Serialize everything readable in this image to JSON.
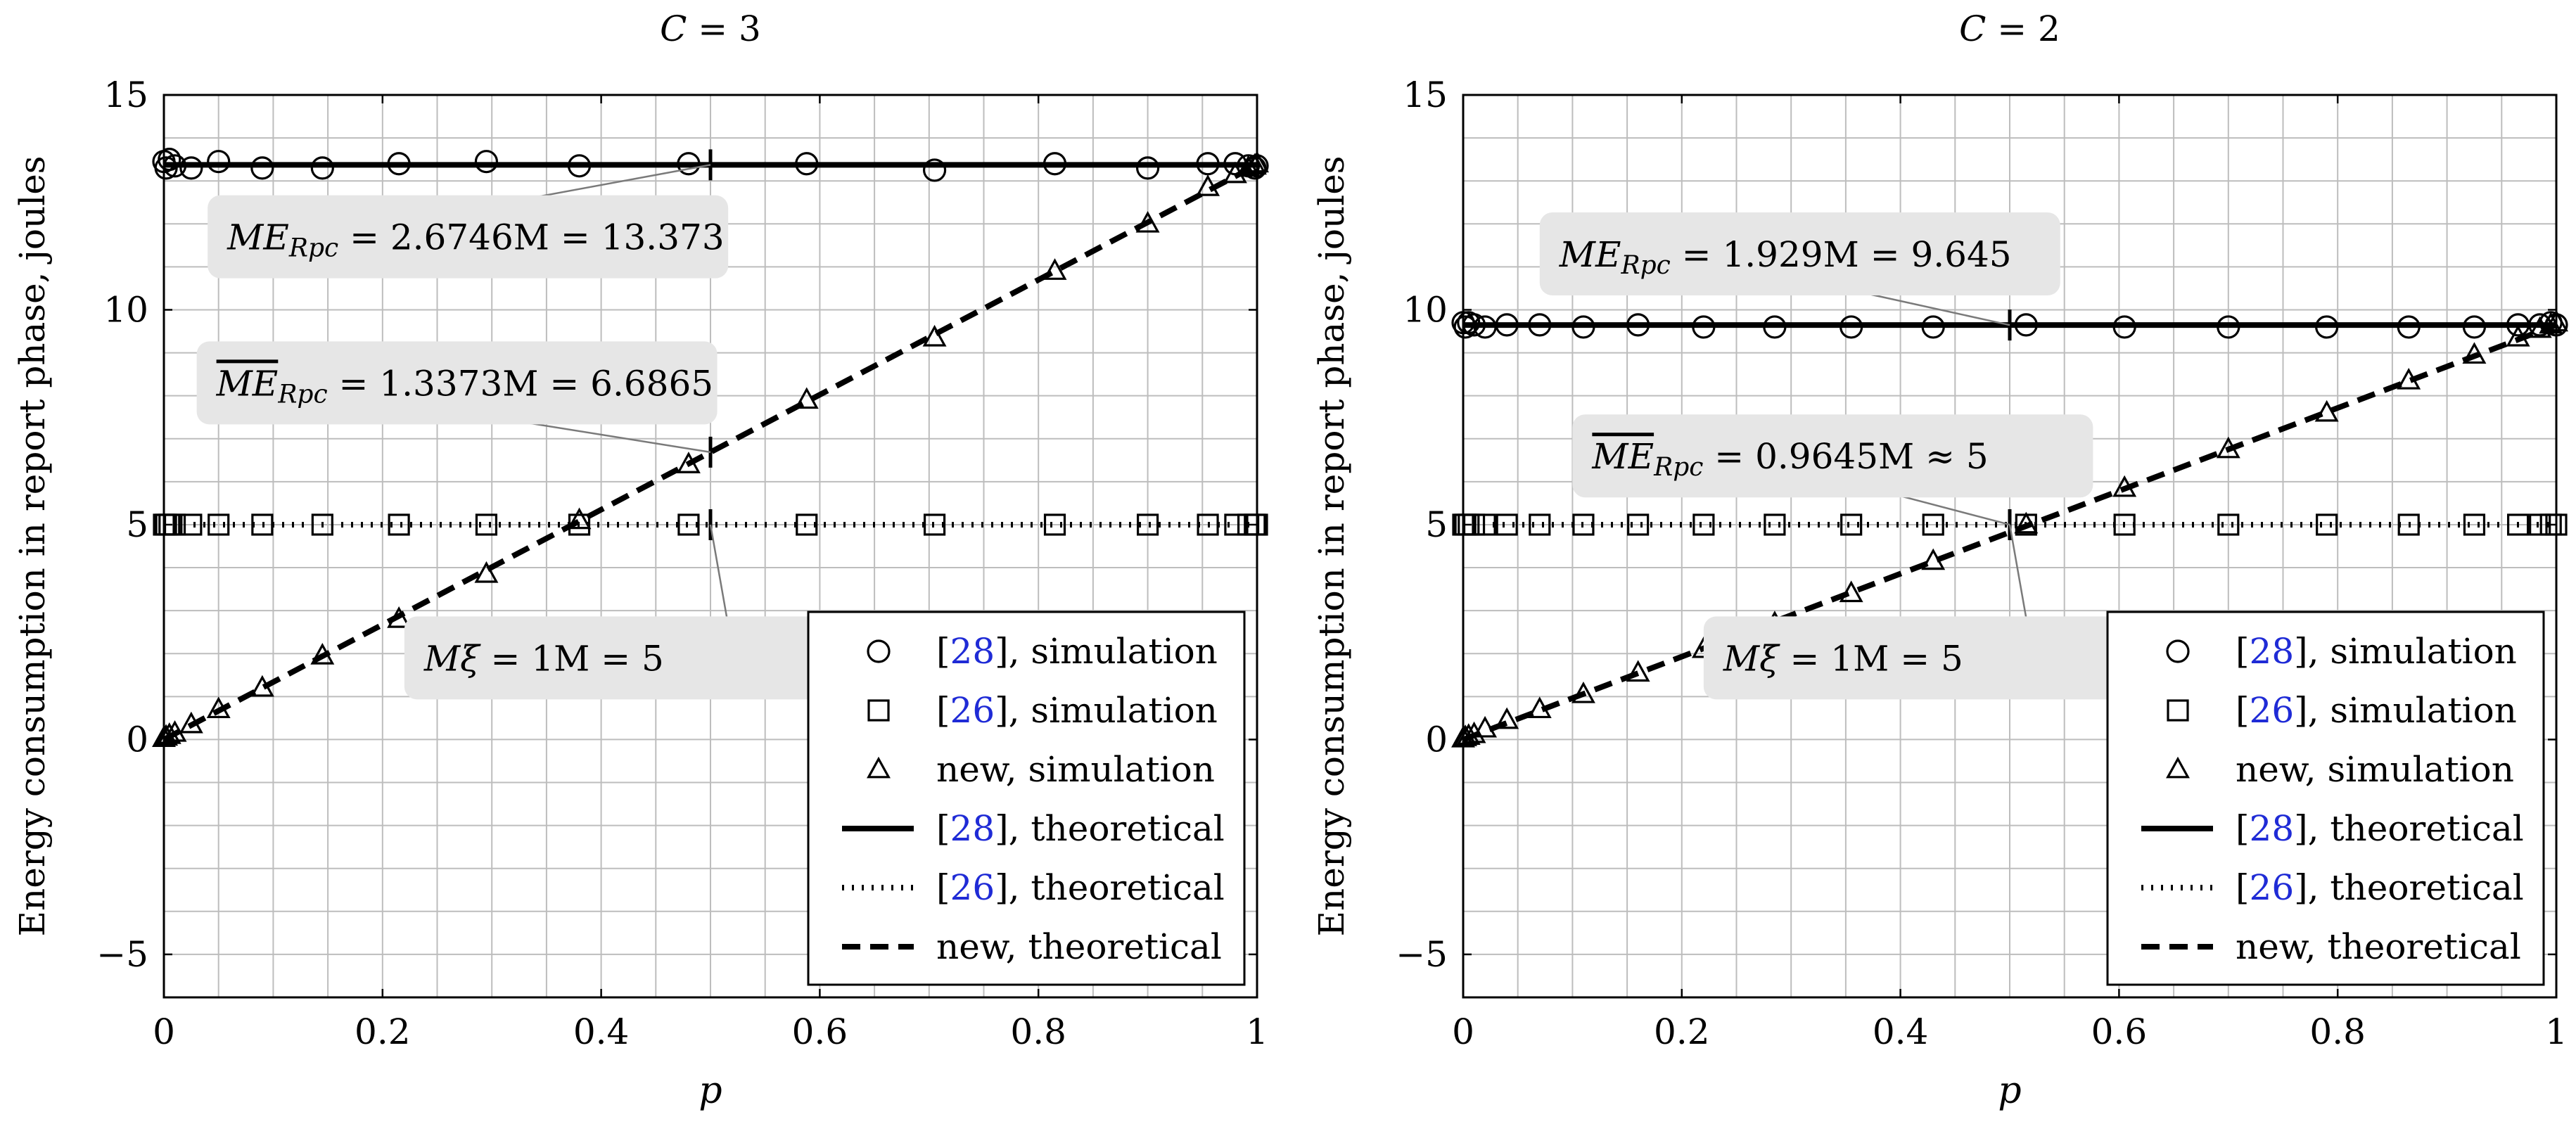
{
  "colors": {
    "axis": "#000000",
    "grid": "#bdbdbd",
    "callout_bg": "#e6e6e6",
    "cite": "#1f2bd6"
  },
  "y_axis_label": "Energy consumption in report phase, joules",
  "x_axis_label": "p",
  "chart_data": [
    {
      "type": "line",
      "title": "C = 3",
      "xlabel": "p",
      "ylabel": "Energy consumption in report phase, joules",
      "xlim": [
        0,
        1
      ],
      "ylim": [
        -6,
        15
      ],
      "xticks": [
        0,
        0.2,
        0.4,
        0.6,
        0.8,
        1
      ],
      "xtick_labels": [
        "0",
        "0.2",
        "0.4",
        "0.6",
        "0.8",
        "1"
      ],
      "yticks": [
        -5,
        0,
        5,
        10,
        15
      ],
      "ytick_labels": [
        "−5",
        "0",
        "5",
        "10",
        "15"
      ],
      "grid": true,
      "legend_position": "bottom-right",
      "legend": [
        {
          "cite": "28",
          "text": ", simulation",
          "style": "circle"
        },
        {
          "cite": "26",
          "text": ", simulation",
          "style": "square"
        },
        {
          "cite": "",
          "text": "new, simulation",
          "style": "triangle"
        },
        {
          "cite": "28",
          "text": ", theoretical",
          "style": "solid"
        },
        {
          "cite": "26",
          "text": ", theoretical",
          "style": "dotted"
        },
        {
          "cite": "",
          "text": "new, theoretical",
          "style": "dashed"
        }
      ],
      "series": [
        {
          "name": "[28], theoretical",
          "style": "solid",
          "x": [
            0,
            1
          ],
          "y": [
            13.373,
            13.373
          ]
        },
        {
          "name": "[26], theoretical",
          "style": "dotted",
          "x": [
            0,
            1
          ],
          "y": [
            5,
            5
          ]
        },
        {
          "name": "new, theoretical",
          "style": "dashed",
          "x": [
            0,
            1
          ],
          "y": [
            0,
            13.373
          ]
        },
        {
          "name": "[28], simulation",
          "marker": "circle",
          "x": [
            0,
            0.002,
            0.005,
            0.01,
            0.025,
            0.05,
            0.09,
            0.145,
            0.215,
            0.295,
            0.38,
            0.48,
            0.588,
            0.705,
            0.815,
            0.9,
            0.955,
            0.98,
            0.992,
            0.998,
            1.0
          ],
          "y": [
            13.45,
            13.3,
            13.5,
            13.35,
            13.3,
            13.45,
            13.3,
            13.3,
            13.4,
            13.45,
            13.35,
            13.4,
            13.4,
            13.25,
            13.4,
            13.3,
            13.4,
            13.4,
            13.35,
            13.3,
            13.35
          ]
        },
        {
          "name": "[26], simulation",
          "marker": "square",
          "x": [
            0,
            0.002,
            0.005,
            0.01,
            0.025,
            0.05,
            0.09,
            0.145,
            0.215,
            0.295,
            0.38,
            0.48,
            0.588,
            0.705,
            0.815,
            0.9,
            0.955,
            0.98,
            0.992,
            0.998,
            1.0
          ],
          "y": [
            5,
            5,
            5,
            5,
            5,
            5,
            5,
            5,
            5,
            5,
            5,
            5,
            5,
            5,
            5,
            5,
            5,
            5,
            5,
            5,
            5
          ]
        },
        {
          "name": "new, simulation",
          "marker": "triangle",
          "x": [
            0,
            0.002,
            0.005,
            0.01,
            0.025,
            0.05,
            0.09,
            0.145,
            0.215,
            0.295,
            0.38,
            0.48,
            0.588,
            0.705,
            0.815,
            0.9,
            0.955,
            0.98,
            0.992,
            0.998,
            1.0
          ],
          "y": [
            0.03,
            0.06,
            0.1,
            0.15,
            0.35,
            0.7,
            1.2,
            1.95,
            2.8,
            3.85,
            5.1,
            6.4,
            7.9,
            9.35,
            10.9,
            12.0,
            12.85,
            13.15,
            13.3,
            13.35,
            13.4
          ]
        }
      ],
      "annotations": [
        {
          "label": "ME",
          "sub": "Rpc",
          "text": " = 2.6746M = 13.373",
          "overline": false,
          "x": 0.5,
          "y": 13.373,
          "box_x": 0.04,
          "box_y": 11.7
        },
        {
          "label": "ME",
          "sub": "Rpc",
          "text": " = 1.3373M = 6.6865",
          "overline": true,
          "x": 0.5,
          "y": 6.6865,
          "box_x": 0.03,
          "box_y": 8.3
        },
        {
          "label": "Mξ",
          "sub": "",
          "text": " = 1M = 5",
          "overline": false,
          "x": 0.5,
          "y": 5,
          "box_x": 0.22,
          "box_y": 1.9
        }
      ]
    },
    {
      "type": "line",
      "title": "C = 2",
      "xlabel": "p",
      "ylabel": "Energy consumption in report phase, joules",
      "xlim": [
        0,
        1
      ],
      "ylim": [
        -6,
        15
      ],
      "xticks": [
        0,
        0.2,
        0.4,
        0.6,
        0.8,
        1
      ],
      "xtick_labels": [
        "0",
        "0.2",
        "0.4",
        "0.6",
        "0.8",
        "1"
      ],
      "yticks": [
        -5,
        0,
        5,
        10,
        15
      ],
      "ytick_labels": [
        "−5",
        "0",
        "5",
        "10",
        "15"
      ],
      "grid": true,
      "legend_position": "bottom-right",
      "legend": [
        {
          "cite": "28",
          "text": ", simulation",
          "style": "circle"
        },
        {
          "cite": "26",
          "text": ", simulation",
          "style": "square"
        },
        {
          "cite": "",
          "text": "new, simulation",
          "style": "triangle"
        },
        {
          "cite": "28",
          "text": ", theoretical",
          "style": "solid"
        },
        {
          "cite": "26",
          "text": ", theoretical",
          "style": "dotted"
        },
        {
          "cite": "",
          "text": "new, theoretical",
          "style": "dashed"
        }
      ],
      "series": [
        {
          "name": "[28], theoretical",
          "style": "solid",
          "x": [
            0,
            1
          ],
          "y": [
            9.645,
            9.645
          ]
        },
        {
          "name": "[26], theoretical",
          "style": "dotted",
          "x": [
            0,
            1
          ],
          "y": [
            5,
            5
          ]
        },
        {
          "name": "new, theoretical",
          "style": "dashed",
          "x": [
            0,
            1
          ],
          "y": [
            0,
            9.645
          ]
        },
        {
          "name": "[28], simulation",
          "marker": "circle",
          "x": [
            0,
            0.002,
            0.005,
            0.01,
            0.02,
            0.04,
            0.07,
            0.11,
            0.16,
            0.22,
            0.285,
            0.355,
            0.43,
            0.515,
            0.605,
            0.7,
            0.79,
            0.865,
            0.925,
            0.965,
            0.985,
            0.995,
            1.0
          ],
          "y": [
            9.7,
            9.6,
            9.7,
            9.65,
            9.6,
            9.65,
            9.65,
            9.6,
            9.65,
            9.6,
            9.6,
            9.6,
            9.6,
            9.65,
            9.6,
            9.6,
            9.6,
            9.6,
            9.6,
            9.65,
            9.65,
            9.7,
            9.65
          ]
        },
        {
          "name": "[26], simulation",
          "marker": "square",
          "x": [
            0,
            0.002,
            0.005,
            0.01,
            0.02,
            0.04,
            0.07,
            0.11,
            0.16,
            0.22,
            0.285,
            0.355,
            0.43,
            0.515,
            0.605,
            0.7,
            0.79,
            0.865,
            0.925,
            0.965,
            0.985,
            0.995,
            1.0
          ],
          "y": [
            5,
            5,
            5,
            5,
            5,
            5,
            5,
            5,
            5,
            5,
            5,
            5,
            5,
            5,
            5,
            5,
            5,
            5,
            5,
            5,
            5,
            5,
            5
          ]
        },
        {
          "name": "new, simulation",
          "marker": "triangle",
          "x": [
            0,
            0.002,
            0.005,
            0.01,
            0.02,
            0.04,
            0.07,
            0.11,
            0.16,
            0.22,
            0.285,
            0.355,
            0.43,
            0.515,
            0.605,
            0.7,
            0.79,
            0.865,
            0.925,
            0.965,
            0.985,
            0.995,
            1.0
          ],
          "y": [
            0.02,
            0.05,
            0.08,
            0.12,
            0.25,
            0.45,
            0.7,
            1.05,
            1.55,
            2.1,
            2.7,
            3.4,
            4.15,
            5.0,
            5.85,
            6.75,
            7.6,
            8.35,
            8.95,
            9.35,
            9.55,
            9.65,
            9.7
          ]
        }
      ],
      "annotations": [
        {
          "label": "ME",
          "sub": "Rpc",
          "text": " = 1.929M = 9.645",
          "overline": false,
          "x": 0.5,
          "y": 9.645,
          "box_x": 0.07,
          "box_y": 11.3
        },
        {
          "label": "ME",
          "sub": "Rpc",
          "text": " = 0.9645M ≈ 5",
          "overline": true,
          "x": 0.5,
          "y": 5,
          "box_x": 0.1,
          "box_y": 6.6
        },
        {
          "label": "Mξ",
          "sub": "",
          "text": " = 1M = 5",
          "overline": false,
          "x": 0.5,
          "y": 5,
          "box_x": 0.22,
          "box_y": 1.9
        }
      ]
    }
  ]
}
